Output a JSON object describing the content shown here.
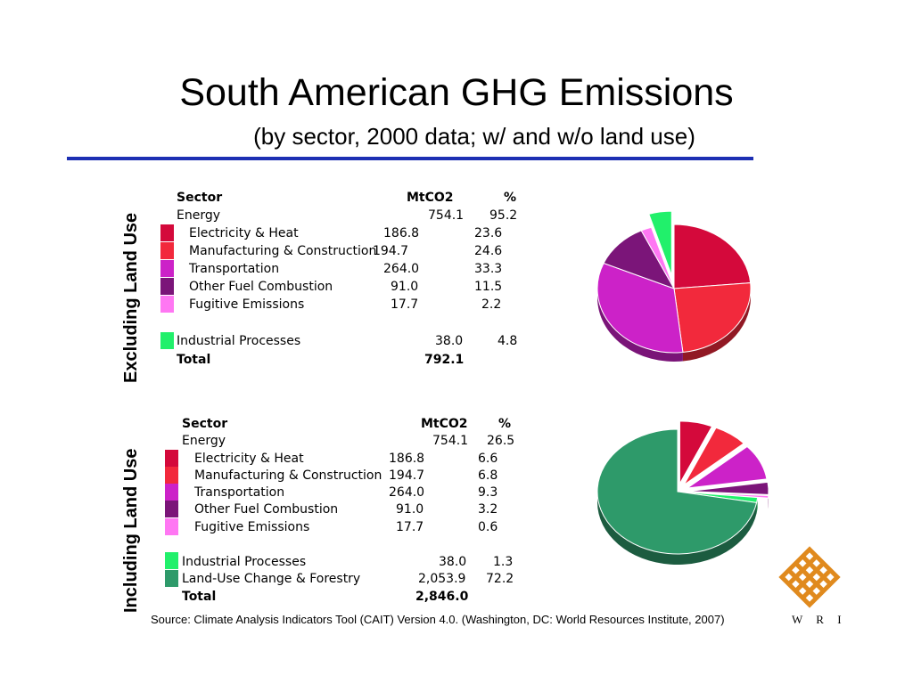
{
  "title": "South American GHG Emissions",
  "subtitle": "(by sector, 2000 data; w/ and w/o land use)",
  "colors": {
    "rule": "#1d2fb3",
    "electricity": "#d4093b",
    "manufacturing": "#f2293c",
    "transportation": "#cc22c8",
    "other_fuel": "#7b1579",
    "fugitive": "#ff77f3",
    "industrial": "#21f06b",
    "land_use": "#2e9a6a"
  },
  "panel_excluding": {
    "side_label": "Excluding Land Use",
    "header": {
      "sector": "Sector",
      "unit": "MtCO2",
      "pct": "%"
    },
    "energy": {
      "label": "Energy",
      "value": "754.1",
      "pct": "95.2"
    },
    "rows": [
      {
        "label": "Electricity & Heat",
        "value": "186.8",
        "pct": "23.6"
      },
      {
        "label": "Manufacturing & Construction",
        "value": "194.7",
        "pct": "24.6"
      },
      {
        "label": "Transportation",
        "value": "264.0",
        "pct": "33.3"
      },
      {
        "label": "Other Fuel Combustion",
        "value": "91.0",
        "pct": "11.5"
      },
      {
        "label": "Fugitive Emissions",
        "value": "17.7",
        "pct": "2.2"
      }
    ],
    "industrial": {
      "label": "Industrial Processes",
      "value": "38.0",
      "pct": "4.8"
    },
    "total": {
      "label": "Total",
      "value": "792.1"
    }
  },
  "panel_including": {
    "side_label": "Including Land Use",
    "header": {
      "sector": "Sector",
      "unit": "MtCO2",
      "pct": "%"
    },
    "energy": {
      "label": "Energy",
      "value": "754.1",
      "pct": "26.5"
    },
    "rows": [
      {
        "label": "Electricity & Heat",
        "value": "186.8",
        "pct": "6.6"
      },
      {
        "label": "Manufacturing & Construction",
        "value": "194.7",
        "pct": "6.8"
      },
      {
        "label": "Transportation",
        "value": "264.0",
        "pct": "9.3"
      },
      {
        "label": "Other Fuel Combustion",
        "value": "91.0",
        "pct": "3.2"
      },
      {
        "label": "Fugitive Emissions",
        "value": "17.7",
        "pct": "0.6"
      }
    ],
    "industrial": {
      "label": "Industrial Processes",
      "value": "38.0",
      "pct": "1.3"
    },
    "land_use": {
      "label": "Land-Use Change & Forestry",
      "value": "2,053.9",
      "pct": "72.2"
    },
    "total": {
      "label": "Total",
      "value": "2,846.0"
    }
  },
  "source": "Source: Climate Analysis Indicators Tool (CAIT) Version 4.0. (Washington, DC: World Resources Institute, 2007)",
  "logo_text": "W R I",
  "chart_data": [
    {
      "type": "pie",
      "title": "",
      "categories": [
        "Electricity & Heat",
        "Manufacturing & Construction",
        "Transportation",
        "Other Fuel Combustion",
        "Fugitive Emissions",
        "Industrial Processes"
      ],
      "values": [
        186.8,
        194.7,
        264.0,
        91.0,
        17.7,
        38.0
      ],
      "colors": [
        "#d4093b",
        "#f2293c",
        "#cc22c8",
        "#7b1579",
        "#ff77f3",
        "#21f06b"
      ],
      "exploded": [
        "Industrial Processes"
      ]
    },
    {
      "type": "pie",
      "title": "",
      "categories": [
        "Electricity & Heat",
        "Manufacturing & Construction",
        "Transportation",
        "Other Fuel Combustion",
        "Fugitive Emissions",
        "Industrial Processes",
        "Land-Use Change & Forestry"
      ],
      "values": [
        186.8,
        194.7,
        264.0,
        91.0,
        17.7,
        38.0,
        2053.9
      ],
      "colors": [
        "#d4093b",
        "#f2293c",
        "#cc22c8",
        "#7b1579",
        "#ff77f3",
        "#21f06b",
        "#2e9a6a"
      ],
      "exploded": [
        "Electricity & Heat",
        "Manufacturing & Construction",
        "Transportation",
        "Other Fuel Combustion",
        "Fugitive Emissions"
      ]
    }
  ]
}
